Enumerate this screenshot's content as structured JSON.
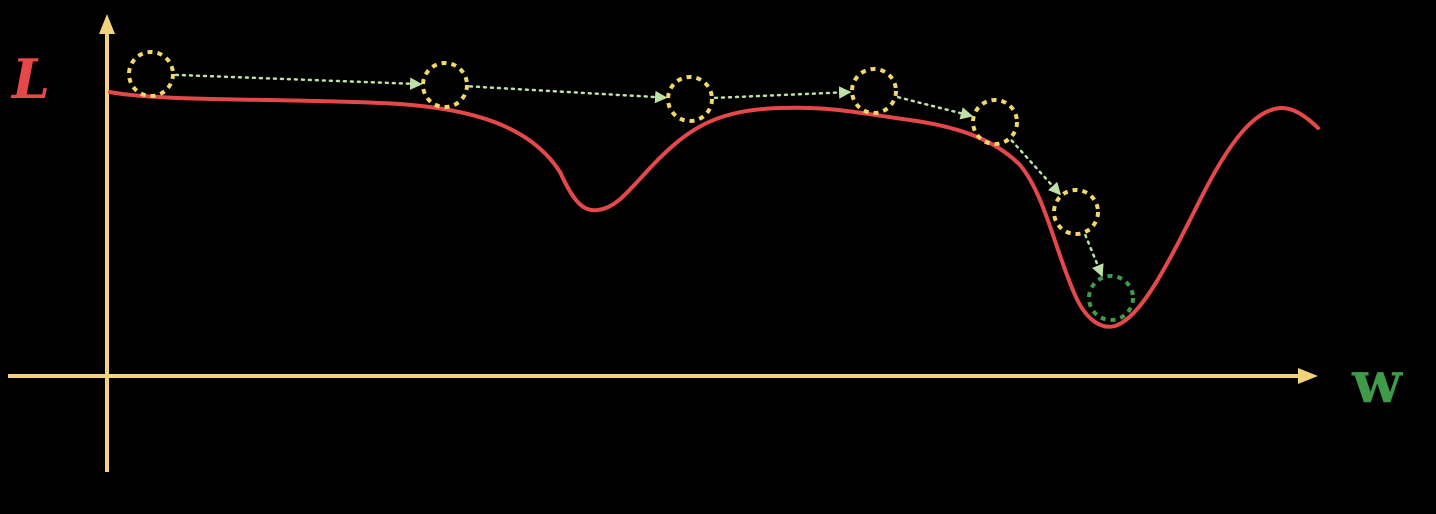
{
  "diagram": {
    "title": "",
    "y_axis_label": "L",
    "x_axis_label": "w",
    "colors": {
      "background": "#000000",
      "axes": "#f2d27a",
      "loss_curve": "#e5484a",
      "step_marker": "#f2d76b",
      "final_marker": "#3f9b4a",
      "step_link": "#bde0a8",
      "l_label": "#e5484a",
      "w_label": "#3f9b4a"
    },
    "step_count": 7,
    "final_step_index": 6,
    "icon_names": [
      "step-marker-icon",
      "arrow-head-icon",
      "minimum-marker-icon"
    ]
  }
}
